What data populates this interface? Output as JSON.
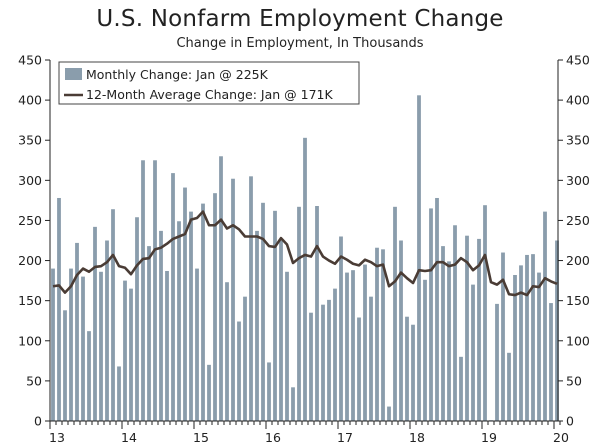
{
  "chart_data": {
    "type": "bar",
    "title": "U.S. Nonfarm Employment Change",
    "subtitle": "Change in Employment, In Thousands",
    "ylim": [
      0,
      450
    ],
    "yticks": [
      0,
      50,
      100,
      150,
      200,
      250,
      300,
      350,
      400,
      450
    ],
    "year_ticks": [
      "13",
      "14",
      "15",
      "16",
      "17",
      "18",
      "19",
      "20"
    ],
    "grid": false,
    "legend_position": "top-left",
    "colors": {
      "bar": "#8a9dac",
      "line": "#4a3c35",
      "axis": "#222222"
    },
    "series": [
      {
        "name": "Monthly Change: Jan @ 225K",
        "type": "bar",
        "values": [
          190,
          278,
          138,
          190,
          222,
          180,
          112,
          242,
          186,
          225,
          264,
          68,
          175,
          165,
          254,
          325,
          218,
          325,
          237,
          187,
          309,
          249,
          291,
          261,
          190,
          271,
          70,
          284,
          330,
          173,
          302,
          124,
          155,
          305,
          237,
          272,
          73,
          262,
          225,
          186,
          42,
          267,
          353,
          135,
          268,
          145,
          151,
          165,
          230,
          185,
          188,
          129,
          195,
          155,
          216,
          214,
          18,
          267,
          225,
          130,
          120,
          406,
          176,
          265,
          278,
          218,
          199,
          244,
          80,
          231,
          170,
          227,
          269,
          1,
          146,
          210,
          85,
          182,
          194,
          207,
          208,
          185,
          261,
          147,
          225
        ]
      },
      {
        "name": "12-Month Average Change: Jan @ 171K",
        "type": "line",
        "values": [
          168,
          169,
          160,
          168,
          182,
          190,
          186,
          192,
          193,
          198,
          207,
          193,
          191,
          183,
          194,
          202,
          203,
          214,
          216,
          221,
          227,
          230,
          233,
          251,
          253,
          261,
          244,
          244,
          251,
          240,
          244,
          239,
          230,
          230,
          230,
          227,
          218,
          217,
          228,
          220,
          197,
          203,
          207,
          205,
          218,
          205,
          200,
          196,
          205,
          201,
          196,
          194,
          201,
          198,
          193,
          195,
          168,
          174,
          185,
          178,
          172,
          188,
          187,
          188,
          198,
          198,
          193,
          195,
          203,
          198,
          188,
          194,
          207,
          173,
          170,
          176,
          158,
          157,
          160,
          157,
          168,
          167,
          178,
          174,
          171
        ]
      }
    ]
  }
}
